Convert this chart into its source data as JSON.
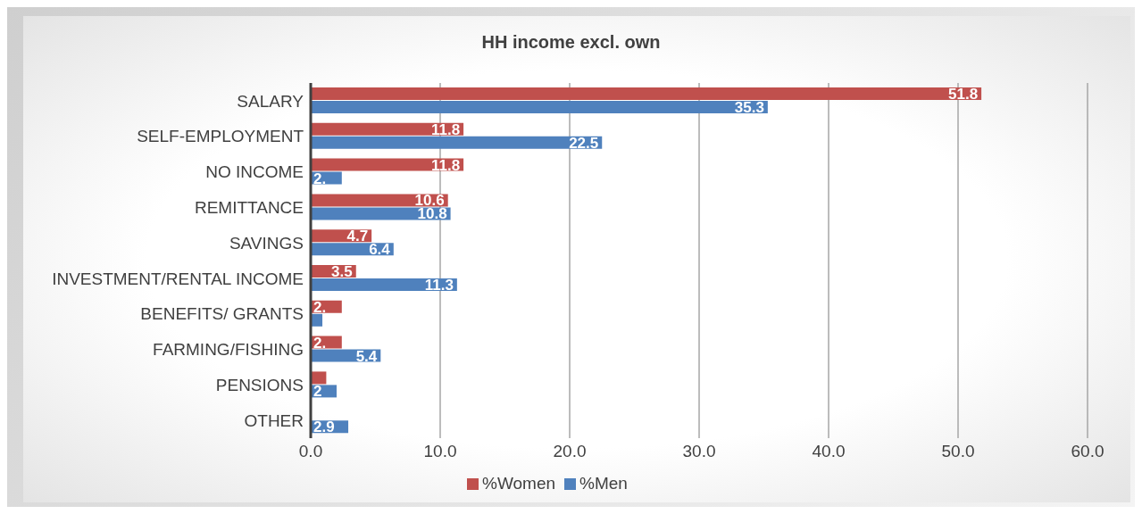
{
  "chart_data": {
    "type": "bar",
    "orientation": "horizontal",
    "title": "HH income excl. own",
    "categories": [
      "SALARY",
      "SELF-EMPLOYMENT",
      "NO INCOME",
      "REMITTANCE",
      "SAVINGS",
      "INVESTMENT/RENTAL INCOME",
      "BENEFITS/ GRANTS",
      "FARMING/FISHING",
      "PENSIONS",
      "OTHER"
    ],
    "series": [
      {
        "name": "%Women",
        "color": "#c0504d",
        "values": [
          51.8,
          11.8,
          11.8,
          10.6,
          4.7,
          3.5,
          2.4,
          2.4,
          1.2,
          0.0
        ],
        "value_labels": [
          "51.8",
          "11.8",
          "11.8",
          "10.6",
          "4.7",
          "3.5",
          "2.",
          "2.",
          null,
          null
        ]
      },
      {
        "name": "%Men",
        "color": "#4f81bd",
        "values": [
          35.3,
          22.5,
          2.4,
          10.8,
          6.4,
          11.3,
          0.9,
          5.4,
          2.0,
          2.9
        ],
        "value_labels": [
          "35.3",
          "22.5",
          "2.",
          "10.8",
          "6.4",
          "11.3",
          null,
          "5.4",
          "2",
          "2.9"
        ]
      }
    ],
    "xlim": [
      0,
      60
    ],
    "xticks": [
      {
        "value": 0,
        "label": "0.0"
      },
      {
        "value": 10,
        "label": "10.0"
      },
      {
        "value": 20,
        "label": "20.0"
      },
      {
        "value": 30,
        "label": "30.0"
      },
      {
        "value": 40,
        "label": "40.0"
      },
      {
        "value": 50,
        "label": "50.0"
      },
      {
        "value": 60,
        "label": "60.0"
      }
    ],
    "grid": "x",
    "legend": "bottom"
  }
}
